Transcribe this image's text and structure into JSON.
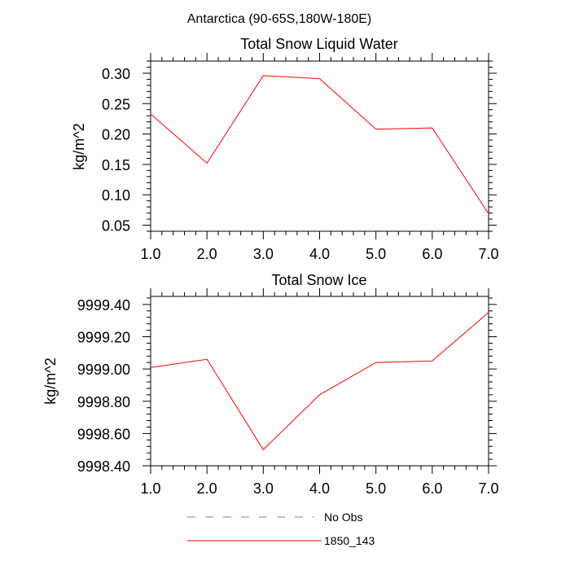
{
  "figure": {
    "title": "Antarctica (90-65S,180W-180E)"
  },
  "chart_data": [
    {
      "type": "line",
      "title": "Total Snow Liquid Water",
      "xlabel": "",
      "ylabel": "kg/m^2",
      "xlim": [
        1.0,
        7.0
      ],
      "ylim": [
        0.04,
        0.32
      ],
      "xticks": [
        1.0,
        2.0,
        3.0,
        4.0,
        5.0,
        6.0,
        7.0
      ],
      "xtick_labels": [
        "1.0",
        "2.0",
        "3.0",
        "4.0",
        "5.0",
        "6.0",
        "7.0"
      ],
      "yticks": [
        0.05,
        0.1,
        0.15,
        0.2,
        0.25,
        0.3
      ],
      "ytick_labels": [
        "0.05",
        "0.10",
        "0.15",
        "0.20",
        "0.25",
        "0.30"
      ],
      "grid": false,
      "x": [
        1,
        2,
        3,
        4,
        5,
        6,
        7
      ],
      "series": [
        {
          "name": "1850_143",
          "color": "#ff0000",
          "values": [
            0.233,
            0.152,
            0.296,
            0.291,
            0.208,
            0.21,
            0.069
          ]
        }
      ]
    },
    {
      "type": "line",
      "title": "Total Snow Ice",
      "xlabel": "",
      "ylabel": "kg/m^2",
      "xlim": [
        1.0,
        7.0
      ],
      "ylim": [
        9998.4,
        9999.45
      ],
      "xticks": [
        1.0,
        2.0,
        3.0,
        4.0,
        5.0,
        6.0,
        7.0
      ],
      "xtick_labels": [
        "1.0",
        "2.0",
        "3.0",
        "4.0",
        "5.0",
        "6.0",
        "7.0"
      ],
      "yticks": [
        9998.4,
        9998.6,
        9998.8,
        9999.0,
        9999.2,
        9999.4
      ],
      "ytick_labels": [
        "9998.40",
        "9998.60",
        "9998.80",
        "9999.00",
        "9999.20",
        "9999.40"
      ],
      "grid": false,
      "x": [
        1,
        2,
        3,
        4,
        5,
        6,
        7
      ],
      "series": [
        {
          "name": "1850_143",
          "color": "#ff0000",
          "values": [
            9999.01,
            9999.06,
            9998.5,
            9998.84,
            9999.04,
            9999.05,
            9999.35
          ]
        }
      ]
    }
  ],
  "legend": {
    "placement": "bottom",
    "entries": [
      {
        "label": "No Obs",
        "color": "#7777cc",
        "style": "dashed"
      },
      {
        "label": "1850_143",
        "color": "#ff0000",
        "style": "solid"
      }
    ]
  }
}
